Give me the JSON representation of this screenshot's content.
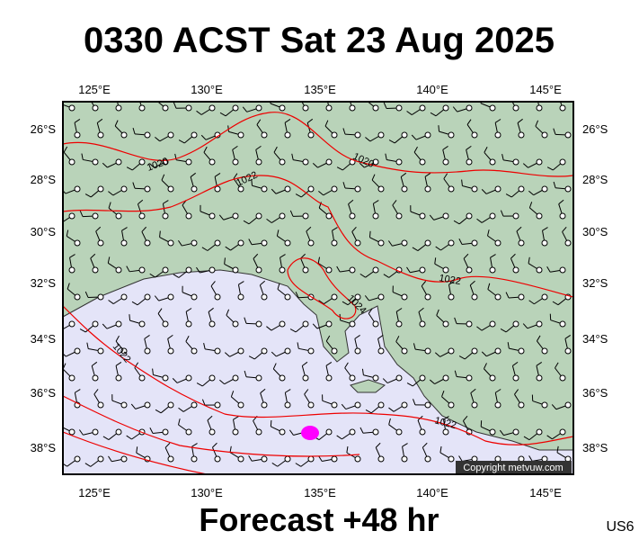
{
  "title": "0330 ACST Sat 23 Aug 2025",
  "footer": "Forecast +48 hr",
  "code": "US6",
  "copyright": "Copyright metvuw.com",
  "lon_labels": [
    "125°E",
    "130°E",
    "135°E",
    "140°E",
    "145°E"
  ],
  "lat_labels": [
    "26°S",
    "28°S",
    "30°S",
    "32°S",
    "34°S",
    "36°S",
    "38°S"
  ],
  "isobar_labels": [
    "1020",
    "1022",
    "1020",
    "1024",
    "1022",
    "1022",
    "1022"
  ]
}
